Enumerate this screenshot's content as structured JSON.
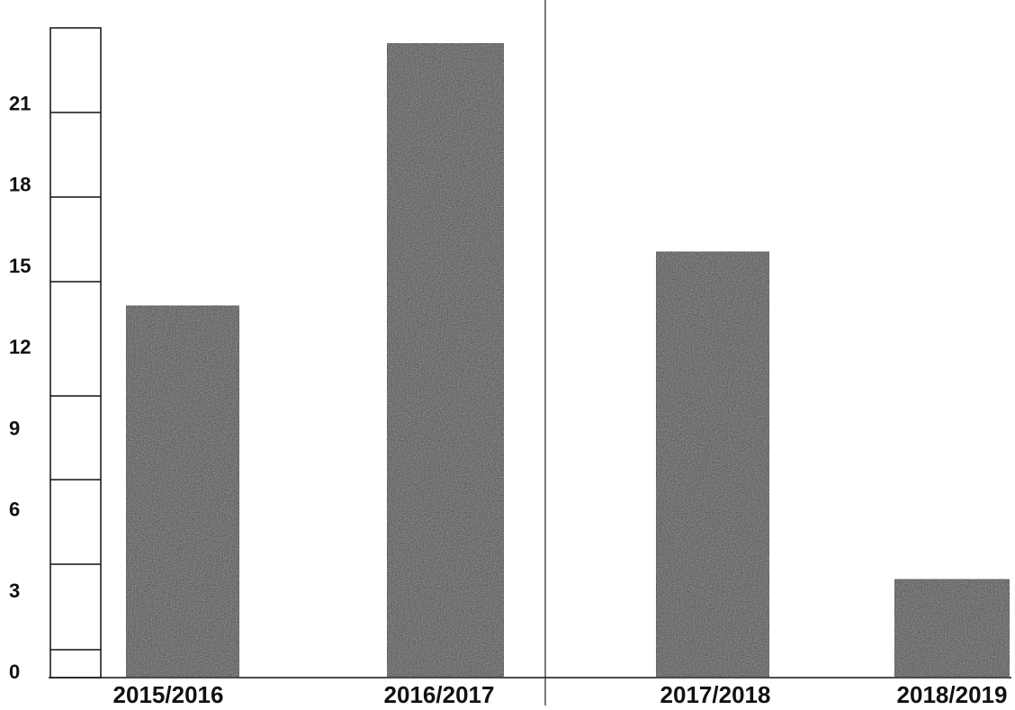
{
  "chart_data": {
    "type": "bar",
    "categories": [
      "2015/2016",
      "2016/2017",
      "2017/2018",
      "2018/2019"
    ],
    "values": [
      13.7,
      23.4,
      15.7,
      3.6
    ],
    "title": "",
    "xlabel": "",
    "ylabel": "",
    "y_ticks": [
      "0",
      "3",
      "6",
      "9",
      "12",
      "15",
      "18",
      "21"
    ],
    "ylim": [
      0,
      24
    ],
    "grid": false,
    "bar_color": "#3a3a3a"
  }
}
